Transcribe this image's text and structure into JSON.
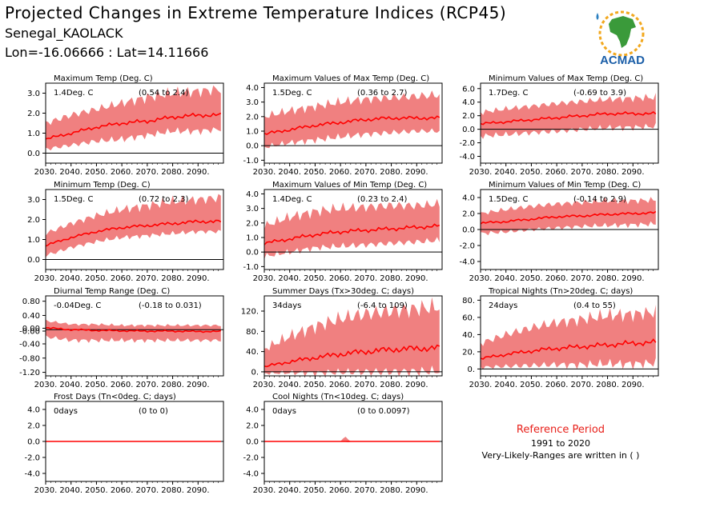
{
  "header": {
    "title": "Projected Changes in Extreme Temperature Indices (RCP45)",
    "station": "Senegal_KAOLACK",
    "coords": "Lon=-16.06666 : Lat=14.11666"
  },
  "logo": {
    "text": "ACMAD",
    "icon": "africa-map-logo-icon"
  },
  "reference": {
    "title": "Reference Period",
    "years": "1991 to 2020",
    "note": "Very-Likely-Ranges are written in ( )"
  },
  "colors": {
    "band": "#f08080",
    "median": "#ff0000",
    "zero_line": "#000000",
    "ref_title": "#e8201a"
  },
  "chart_data": [
    {
      "type": "area",
      "title": "Maximum Temp (Deg. C)",
      "annotation": "1.4Deg. C",
      "range": "(0.54 to 2.4)",
      "xlim": [
        2030,
        2100
      ],
      "ylim": [
        -0.5,
        3.5
      ],
      "xticks": [
        "2030.",
        "2040.",
        "2050.",
        "2060.",
        "2070.",
        "2080.",
        "2090."
      ],
      "yticks": [
        "0.0",
        "1.0",
        "2.0",
        "3.0"
      ],
      "series": [
        {
          "x": [
            2030,
            2040,
            2050,
            2060,
            2070,
            2080,
            2090,
            2099
          ],
          "values": [
            0.7,
            1.0,
            1.3,
            1.5,
            1.6,
            1.8,
            1.9,
            1.9
          ]
        },
        {
          "x": [
            2030,
            2040,
            2050,
            2060,
            2070,
            2080,
            2090,
            2099
          ],
          "values": [
            0.2,
            0.4,
            0.6,
            0.7,
            0.9,
            1.1,
            1.1,
            1.2
          ]
        },
        {
          "x": [
            2030,
            2040,
            2050,
            2060,
            2070,
            2080,
            2090,
            2099
          ],
          "values": [
            1.5,
            1.9,
            2.2,
            2.5,
            2.8,
            3.0,
            3.1,
            3.2
          ]
        }
      ]
    },
    {
      "type": "area",
      "title": "Maximum Values of Max Temp (Deg. C)",
      "annotation": "1.5Deg. C",
      "range": "(0.36 to 2.7)",
      "xlim": [
        2030,
        2100
      ],
      "ylim": [
        -1.2,
        4.3
      ],
      "xticks": [
        "2030.",
        "2040.",
        "2050.",
        "2060.",
        "2070.",
        "2080.",
        "2090."
      ],
      "yticks": [
        "-1.0",
        "0.0",
        "1.0",
        "2.0",
        "3.0",
        "4.0"
      ],
      "series": [
        {
          "x": [
            2030,
            2040,
            2050,
            2060,
            2070,
            2080,
            2090,
            2099
          ],
          "values": [
            0.8,
            1.1,
            1.4,
            1.6,
            1.8,
            1.9,
            1.9,
            1.9
          ]
        },
        {
          "x": [
            2030,
            2040,
            2050,
            2060,
            2070,
            2080,
            2090,
            2099
          ],
          "values": [
            -0.1,
            0.2,
            0.4,
            0.6,
            0.8,
            0.9,
            1.0,
            1.0
          ]
        },
        {
          "x": [
            2030,
            2040,
            2050,
            2060,
            2070,
            2080,
            2090,
            2099
          ],
          "values": [
            2.0,
            2.4,
            2.7,
            3.0,
            3.2,
            3.3,
            3.4,
            3.5
          ]
        }
      ]
    },
    {
      "type": "area",
      "title": "Minimum Values of Max Temp (Deg. C)",
      "annotation": "1.7Deg. C",
      "range": "(-0.69 to 3.9)",
      "xlim": [
        2030,
        2100
      ],
      "ylim": [
        -5,
        6.8
      ],
      "xticks": [
        "2030.",
        "2040.",
        "2050.",
        "2060.",
        "2070.",
        "2080.",
        "2090."
      ],
      "yticks": [
        "-4.0",
        "-2.0",
        "0.0",
        "2.0",
        "4.0",
        "6.0"
      ],
      "series": [
        {
          "x": [
            2030,
            2040,
            2050,
            2060,
            2070,
            2080,
            2090,
            2099
          ],
          "values": [
            0.8,
            1.1,
            1.4,
            1.7,
            2.0,
            2.3,
            2.3,
            2.3
          ]
        },
        {
          "x": [
            2030,
            2040,
            2050,
            2060,
            2070,
            2080,
            2090,
            2099
          ],
          "values": [
            -1.0,
            -0.8,
            -0.5,
            -0.3,
            0.0,
            0.2,
            0.3,
            0.4
          ]
        },
        {
          "x": [
            2030,
            2040,
            2050,
            2060,
            2070,
            2080,
            2090,
            2099
          ],
          "values": [
            2.5,
            3.0,
            3.4,
            3.8,
            4.1,
            4.4,
            4.6,
            4.7
          ]
        }
      ]
    },
    {
      "type": "area",
      "title": "Minimum Temp (Deg. C)",
      "annotation": "1.5Deg. C",
      "range": "(0.72 to 2.3)",
      "xlim": [
        2030,
        2100
      ],
      "ylim": [
        -0.5,
        3.5
      ],
      "xticks": [
        "2030.",
        "2040.",
        "2050.",
        "2060.",
        "2070.",
        "2080.",
        "2090."
      ],
      "yticks": [
        "0.0",
        "1.0",
        "2.0",
        "3.0"
      ],
      "series": [
        {
          "x": [
            2030,
            2040,
            2050,
            2060,
            2070,
            2080,
            2090,
            2099
          ],
          "values": [
            0.7,
            1.1,
            1.4,
            1.6,
            1.7,
            1.8,
            1.9,
            1.9
          ]
        },
        {
          "x": [
            2030,
            2040,
            2050,
            2060,
            2070,
            2080,
            2090,
            2099
          ],
          "values": [
            0.2,
            0.6,
            0.9,
            1.1,
            1.2,
            1.3,
            1.4,
            1.4
          ]
        },
        {
          "x": [
            2030,
            2040,
            2050,
            2060,
            2070,
            2080,
            2090,
            2099
          ],
          "values": [
            1.3,
            1.8,
            2.2,
            2.5,
            2.7,
            2.9,
            3.0,
            3.1
          ]
        }
      ]
    },
    {
      "type": "area",
      "title": "Maximum Values of Min Temp (Deg. C)",
      "annotation": "1.4Deg. C",
      "range": "(0.23 to 2.4)",
      "xlim": [
        2030,
        2100
      ],
      "ylim": [
        -1.2,
        4.3
      ],
      "xticks": [
        "2030.",
        "2040.",
        "2050.",
        "2060.",
        "2070.",
        "2080.",
        "2090."
      ],
      "yticks": [
        "-1.0",
        "0.0",
        "1.0",
        "2.0",
        "3.0",
        "4.0"
      ],
      "series": [
        {
          "x": [
            2030,
            2040,
            2050,
            2060,
            2070,
            2080,
            2090,
            2099
          ],
          "values": [
            0.6,
            0.9,
            1.2,
            1.4,
            1.5,
            1.6,
            1.7,
            1.8
          ]
        },
        {
          "x": [
            2030,
            2040,
            2050,
            2060,
            2070,
            2080,
            2090,
            2099
          ],
          "values": [
            -0.3,
            0.0,
            0.3,
            0.4,
            0.5,
            0.6,
            0.7,
            0.8
          ]
        },
        {
          "x": [
            2030,
            2040,
            2050,
            2060,
            2070,
            2080,
            2090,
            2099
          ],
          "values": [
            1.8,
            2.4,
            2.8,
            3.0,
            3.1,
            3.2,
            3.2,
            3.3
          ]
        }
      ]
    },
    {
      "type": "area",
      "title": "Minimum Values of Min Temp (Deg. C)",
      "annotation": "1.5Deg. C",
      "range": "(-0.14 to 2.9)",
      "xlim": [
        2030,
        2100
      ],
      "ylim": [
        -5,
        5
      ],
      "xticks": [
        "2030.",
        "2040.",
        "2050.",
        "2060.",
        "2070.",
        "2080.",
        "2090."
      ],
      "yticks": [
        "-4.0",
        "-2.0",
        "0.0",
        "2.0",
        "4.0"
      ],
      "series": [
        {
          "x": [
            2030,
            2040,
            2050,
            2060,
            2070,
            2080,
            2090,
            2099
          ],
          "values": [
            0.8,
            1.0,
            1.3,
            1.6,
            1.7,
            1.9,
            2.0,
            2.1
          ]
        },
        {
          "x": [
            2030,
            2040,
            2050,
            2060,
            2070,
            2080,
            2090,
            2099
          ],
          "values": [
            -0.5,
            -0.3,
            0.0,
            0.2,
            0.4,
            0.5,
            0.6,
            0.7
          ]
        },
        {
          "x": [
            2030,
            2040,
            2050,
            2060,
            2070,
            2080,
            2090,
            2099
          ],
          "values": [
            2.0,
            2.5,
            2.9,
            3.2,
            3.4,
            3.6,
            3.6,
            3.7
          ]
        }
      ]
    },
    {
      "type": "area",
      "title": "Diurnal Temp Range (Deg. C)",
      "annotation": "-0.04Deg. C",
      "range": "(-0.18 to 0.031)",
      "xlim": [
        2030,
        2100
      ],
      "ylim": [
        -1.3,
        0.95
      ],
      "xticks": [
        "2030.",
        "2040.",
        "2050.",
        "2060.",
        "2070.",
        "2080.",
        "2090."
      ],
      "yticks": [
        "-1.20",
        "-0.80",
        "-0.40",
        "-0.00",
        "0.00",
        "0.40",
        "0.80"
      ],
      "series": [
        {
          "x": [
            2030,
            2040,
            2050,
            2060,
            2070,
            2080,
            2090,
            2099
          ],
          "values": [
            0.05,
            0.0,
            -0.02,
            -0.03,
            -0.04,
            -0.04,
            -0.05,
            -0.05
          ]
        },
        {
          "x": [
            2030,
            2040,
            2050,
            2060,
            2070,
            2080,
            2090,
            2099
          ],
          "values": [
            -0.2,
            -0.3,
            -0.3,
            -0.3,
            -0.3,
            -0.3,
            -0.3,
            -0.3
          ]
        },
        {
          "x": [
            2030,
            2040,
            2050,
            2060,
            2070,
            2080,
            2090,
            2099
          ],
          "values": [
            0.25,
            0.15,
            0.15,
            0.12,
            0.12,
            0.12,
            0.12,
            0.12
          ]
        }
      ]
    },
    {
      "type": "area",
      "title": "Summer Days (Tx>30deg. C; days)",
      "annotation": "34days",
      "range": "(-6.4 to 109)",
      "xlim": [
        2030,
        2100
      ],
      "ylim": [
        -8,
        150
      ],
      "xticks": [
        "2030.",
        "2040.",
        "2050.",
        "2060.",
        "2070.",
        "2080.",
        "2090."
      ],
      "yticks": [
        "0.",
        "40.",
        "80.",
        "120."
      ],
      "series": [
        {
          "x": [
            2030,
            2040,
            2050,
            2060,
            2070,
            2080,
            2090,
            2099
          ],
          "values": [
            10,
            20,
            28,
            35,
            40,
            44,
            46,
            47
          ]
        },
        {
          "x": [
            2030,
            2040,
            2050,
            2060,
            2070,
            2080,
            2090,
            2099
          ],
          "values": [
            -3,
            -2,
            -2,
            -1,
            0,
            0,
            1,
            1
          ]
        },
        {
          "x": [
            2030,
            2040,
            2050,
            2060,
            2070,
            2080,
            2090,
            2099
          ],
          "values": [
            45,
            70,
            90,
            105,
            115,
            120,
            125,
            128
          ]
        }
      ]
    },
    {
      "type": "area",
      "title": "Tropical Nights (Tn>20deg. C; days)",
      "annotation": "24days",
      "range": "(0.4 to 55)",
      "xlim": [
        2030,
        2100
      ],
      "ylim": [
        -8,
        85
      ],
      "xticks": [
        "2030.",
        "2040.",
        "2050.",
        "2060.",
        "2070.",
        "2080.",
        "2090."
      ],
      "yticks": [
        "0.",
        "20.",
        "40.",
        "60.",
        "80."
      ],
      "series": [
        {
          "x": [
            2030,
            2040,
            2050,
            2060,
            2070,
            2080,
            2090,
            2099
          ],
          "values": [
            12,
            17,
            21,
            24,
            26,
            28,
            30,
            31
          ]
        },
        {
          "x": [
            2030,
            2040,
            2050,
            2060,
            2070,
            2080,
            2090,
            2099
          ],
          "values": [
            2,
            3,
            4,
            5,
            5,
            6,
            6,
            7
          ]
        },
        {
          "x": [
            2030,
            2040,
            2050,
            2060,
            2070,
            2080,
            2090,
            2099
          ],
          "values": [
            30,
            40,
            48,
            54,
            58,
            62,
            64,
            66
          ]
        }
      ]
    },
    {
      "type": "area",
      "title": "Frost Days (Tn<0deg. C; days)",
      "annotation": "0days",
      "range": "(0 to 0)",
      "xlim": [
        2030,
        2100
      ],
      "ylim": [
        -5,
        5
      ],
      "xticks": [
        "2030.",
        "2040.",
        "2050.",
        "2060.",
        "2070.",
        "2080.",
        "2090."
      ],
      "yticks": [
        "-4.0",
        "-2.0",
        "0.0",
        "2.0",
        "4.0"
      ],
      "series": [
        {
          "x": [
            2030,
            2099
          ],
          "values": [
            0,
            0
          ]
        },
        {
          "x": [
            2030,
            2099
          ],
          "values": [
            0,
            0
          ]
        },
        {
          "x": [
            2030,
            2099
          ],
          "values": [
            0,
            0
          ]
        }
      ]
    },
    {
      "type": "area",
      "title": "Cool Nights (Tn<10deg. C; days)",
      "annotation": "0days",
      "range": "(0 to 0.0097)",
      "xlim": [
        2030,
        2100
      ],
      "ylim": [
        -5,
        5
      ],
      "xticks": [
        "2030.",
        "2040.",
        "2050.",
        "2060.",
        "2070.",
        "2080.",
        "2090."
      ],
      "yticks": [
        "-4.0",
        "-2.0",
        "0.0",
        "2.0",
        "4.0"
      ],
      "series": [
        {
          "x": [
            2030,
            2060,
            2062,
            2064,
            2099
          ],
          "values": [
            0,
            0,
            0,
            0,
            0
          ]
        },
        {
          "x": [
            2030,
            2060,
            2062,
            2064,
            2099
          ],
          "values": [
            0,
            0,
            0,
            0,
            0
          ]
        },
        {
          "x": [
            2030,
            2060,
            2062,
            2064,
            2099
          ],
          "values": [
            0,
            0,
            0.6,
            0,
            0
          ]
        }
      ]
    }
  ]
}
